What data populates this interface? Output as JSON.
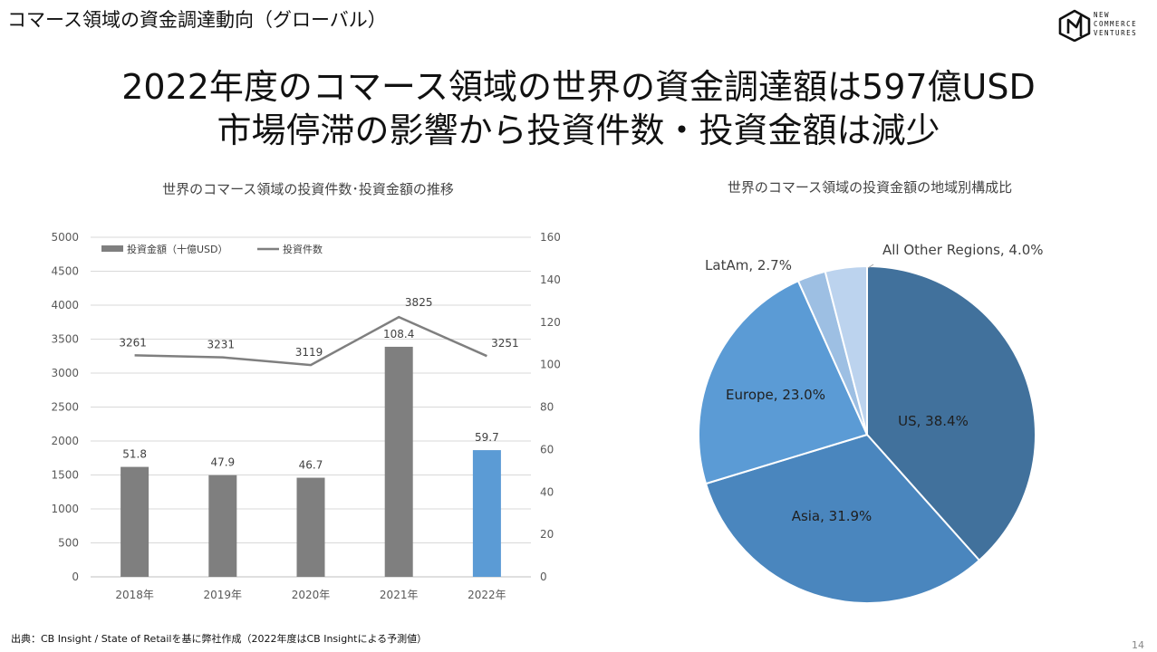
{
  "header": {
    "section_title": "コマース領域の資金調達動向（グローバル）",
    "logo_text_lines": [
      "NEW",
      "COMMERCE",
      "VENTURES"
    ]
  },
  "headline": {
    "line1": "2022年度のコマース領域の世界の資金調達額は597億USD",
    "line2": "市場停滞の影響から投資件数・投資金額は減少"
  },
  "colors": {
    "bar": "#7f7f7f",
    "bar_highlight": "#5b9bd5",
    "line": "#7f7f7f",
    "pie_us": "#41719c",
    "pie_asia": "#4a86be",
    "pie_europe": "#5b9bd5",
    "pie_latam": "#9dbfe3",
    "pie_other": "#bcd3ee"
  },
  "chart_data": [
    {
      "type": "bar",
      "title": "世界のコマース領域の投資件数･投資金額の推移",
      "categories": [
        "2018年",
        "2019年",
        "2020年",
        "2021年",
        "2022年"
      ],
      "series": [
        {
          "name": "投資金額（十億USD）",
          "type": "bar",
          "axis": "right",
          "values": [
            51.8,
            47.9,
            46.7,
            108.4,
            59.7
          ]
        },
        {
          "name": "投資件数",
          "type": "line",
          "axis": "left",
          "values": [
            3261,
            3231,
            3119,
            3825,
            3251
          ]
        }
      ],
      "left_axis": {
        "ylim": [
          0,
          5000
        ],
        "ticks": [
          "0",
          "500",
          "1000",
          "1500",
          "2000",
          "2500",
          "3000",
          "3500",
          "4000",
          "4500",
          "5000"
        ]
      },
      "right_axis": {
        "ylim": [
          0,
          160
        ],
        "ticks": [
          "0",
          "20",
          "40",
          "60",
          "80",
          "100",
          "120",
          "140",
          "160"
        ]
      },
      "grid": true,
      "legend": "top-left",
      "highlight_index": 4
    },
    {
      "type": "pie",
      "title": "世界のコマース領域の投資金額の地域別構成比",
      "slices": [
        {
          "label": "US, 38.4%",
          "name": "US",
          "value": 38.4
        },
        {
          "label": "Asia, 31.9%",
          "name": "Asia",
          "value": 31.9
        },
        {
          "label": "Europe, 23.0%",
          "name": "Europe",
          "value": 23.0
        },
        {
          "label": "LatAm, 2.7%",
          "name": "LatAm",
          "value": 2.7
        },
        {
          "label": "All Other Regions, 4.0%",
          "name": "All Other Regions",
          "value": 4.0
        }
      ]
    }
  ],
  "footer": {
    "source": "出典：CB Insight / State of Retailを基に弊社作成（2022年度はCB Insightによる予測値）",
    "page_number": "14"
  }
}
